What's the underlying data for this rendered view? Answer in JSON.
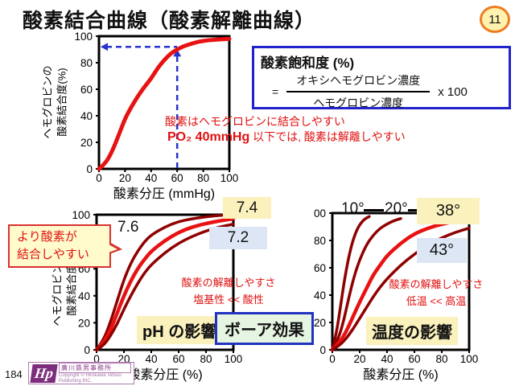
{
  "slide": {
    "title": "酸素結合曲線（酸素解離曲線）",
    "badge_number": "11"
  },
  "formula_box": {
    "title": "酸素飽和度 (%)",
    "equals_sign": "=",
    "numerator": "オキシヘモグロビン濃度",
    "denominator": "ヘモグロビン濃度",
    "multiplier": "x 100"
  },
  "main_panel": {
    "note_line1": "酸素はヘモグロビンに結合しやすい",
    "note_line2_strong": "PO₂ 40mmHg",
    "note_line2_rest": " 以下では, 酸素は解離しやすい",
    "ylabel_line1": "ヘモグロビンの",
    "ylabel_line2": "酸素結合度(%)"
  },
  "ph_panel": {
    "curve_label_76": "7.6",
    "badge_74": "7.4",
    "badge_72": "7.2",
    "callout_line1": "より酸素が",
    "callout_line2": "結合しやすい",
    "note_line1": "酸素の解離しやすさ",
    "note_line2": "塩基性 << 酸性",
    "highlight": "pH の影響",
    "bohr_box": "ボーア効果",
    "ylabel_line1": "ヘモグロビンの",
    "ylabel_line2": "酸素結合度"
  },
  "temp_panel": {
    "label_10": "10°",
    "label_20": "20°",
    "badge_38": "38°",
    "badge_43": "43°",
    "note_line1": "酸素の解離しやすさ",
    "note_line2": "低温 << 高温",
    "highlight": "温度の影響"
  },
  "footer": {
    "page_number": "184",
    "logo_hp": "Hp",
    "logo_office": "廣川鉄男事務所",
    "logo_copyright": "Copyright © Hirokawa Tetsuo Publishing INC."
  },
  "colors": {
    "bright_red": "#e81212",
    "dark_red": "#8f0000",
    "guide_blue": "#2633cc",
    "note_red": "#e01010",
    "highlight_yellow": "#faf1bc",
    "badge_blue": "#dce6f5",
    "callout_yellow": "#fffbcc",
    "bohr_green": "#e6f4e2"
  },
  "chart_data": [
    {
      "id": "main",
      "type": "line",
      "title": "酸素結合曲線",
      "xlabel": "酸素分圧 (mmHg)",
      "ylabel": "ヘモグロビンの酸素結合度(%)",
      "xlim": [
        0,
        100
      ],
      "ylim": [
        0,
        100
      ],
      "xticks": [
        0,
        20,
        40,
        60,
        80,
        100
      ],
      "yticks": [
        0,
        20,
        40,
        60,
        80,
        100
      ],
      "grid": false,
      "series": [
        {
          "name": "oxygen-binding-curve",
          "color": "#e81212",
          "width": 5,
          "points": [
            [
              0,
              0
            ],
            [
              5,
              4
            ],
            [
              10,
              13
            ],
            [
              15,
              25
            ],
            [
              20,
              38
            ],
            [
              25,
              47
            ],
            [
              30,
              55
            ],
            [
              35,
              62
            ],
            [
              40,
              68
            ],
            [
              45,
              76
            ],
            [
              50,
              82
            ],
            [
              55,
              87
            ],
            [
              60,
              90
            ],
            [
              65,
              92.5
            ],
            [
              70,
              94
            ],
            [
              75,
              95.5
            ],
            [
              80,
              96.5
            ],
            [
              90,
              97.5
            ],
            [
              100,
              98
            ]
          ]
        }
      ],
      "guides": {
        "x": 60,
        "y": 92,
        "color": "#2633cc"
      }
    },
    {
      "id": "ph",
      "type": "line",
      "title": "pH の影響",
      "xlabel": "酸素分圧 (%)",
      "ylabel": "ヘモグロビンの酸素結合度",
      "xlim": [
        0,
        100
      ],
      "ylim": [
        0,
        100
      ],
      "xticks": [
        0,
        20,
        40,
        60,
        80,
        100
      ],
      "yticks": [
        0,
        20,
        40,
        60,
        80,
        100
      ],
      "grid": false,
      "series": [
        {
          "name": "pH-7.6",
          "color": "#8f0000",
          "width": 3.5,
          "points": [
            [
              0,
              0
            ],
            [
              5,
              7
            ],
            [
              10,
              20
            ],
            [
              15,
              36
            ],
            [
              20,
              52
            ],
            [
              25,
              64
            ],
            [
              30,
              73
            ],
            [
              35,
              80
            ],
            [
              40,
              85
            ],
            [
              50,
              91
            ],
            [
              60,
              95
            ],
            [
              70,
              97
            ],
            [
              80,
              98.5
            ],
            [
              90,
              99.5
            ],
            [
              100,
              100
            ]
          ]
        },
        {
          "name": "pH-7.4",
          "color": "#e81212",
          "width": 4.5,
          "points": [
            [
              0,
              0
            ],
            [
              5,
              5
            ],
            [
              10,
              14
            ],
            [
              15,
              27
            ],
            [
              20,
              40
            ],
            [
              25,
              51
            ],
            [
              30,
              60
            ],
            [
              35,
              67
            ],
            [
              40,
              73
            ],
            [
              50,
              81
            ],
            [
              60,
              87
            ],
            [
              70,
              91
            ],
            [
              80,
              93.5
            ],
            [
              90,
              95.5
            ],
            [
              100,
              97
            ]
          ]
        },
        {
          "name": "pH-7.2",
          "color": "#8f0000",
          "width": 3.5,
          "points": [
            [
              0,
              0
            ],
            [
              5,
              3
            ],
            [
              10,
              10
            ],
            [
              15,
              19
            ],
            [
              20,
              30
            ],
            [
              25,
              40
            ],
            [
              30,
              49
            ],
            [
              35,
              57
            ],
            [
              40,
              63
            ],
            [
              50,
              72
            ],
            [
              60,
              79
            ],
            [
              70,
              84
            ],
            [
              80,
              88
            ],
            [
              90,
              91
            ],
            [
              100,
              93
            ]
          ]
        }
      ]
    },
    {
      "id": "temp",
      "type": "line",
      "title": "温度の影響",
      "xlabel": "酸素分圧 (%)",
      "xlim": [
        0,
        100
      ],
      "ylim": [
        0,
        100
      ],
      "xticks": [
        0,
        20,
        40,
        60,
        80,
        100
      ],
      "yticks": [
        0,
        20,
        40,
        60,
        80,
        100
      ],
      "grid": false,
      "series": [
        {
          "name": "10deg",
          "color": "#8f0000",
          "width": 3.5,
          "points": [
            [
              0,
              0
            ],
            [
              3,
              12
            ],
            [
              6,
              32
            ],
            [
              9,
              52
            ],
            [
              12,
              68
            ],
            [
              15,
              80
            ],
            [
              18,
              88
            ],
            [
              21,
              93
            ],
            [
              24,
              96
            ],
            [
              27,
              97.5
            ]
          ]
        },
        {
          "name": "20deg",
          "color": "#8f0000",
          "width": 3.5,
          "points": [
            [
              0,
              0
            ],
            [
              4,
              7
            ],
            [
              8,
              20
            ],
            [
              12,
              38
            ],
            [
              16,
              54
            ],
            [
              20,
              66
            ],
            [
              25,
              77
            ],
            [
              30,
              84
            ],
            [
              35,
              89
            ],
            [
              40,
              92
            ],
            [
              45,
              94.5
            ],
            [
              50,
              96
            ]
          ]
        },
        {
          "name": "38deg",
          "color": "#e81212",
          "width": 4.5,
          "points": [
            [
              0,
              0
            ],
            [
              5,
              5
            ],
            [
              10,
              13
            ],
            [
              15,
              24
            ],
            [
              20,
              35
            ],
            [
              25,
              45
            ],
            [
              30,
              55
            ],
            [
              35,
              62
            ],
            [
              40,
              69
            ],
            [
              50,
              78
            ],
            [
              60,
              85
            ],
            [
              70,
              89
            ],
            [
              80,
              92
            ],
            [
              90,
              94
            ],
            [
              100,
              96
            ]
          ]
        },
        {
          "name": "43deg",
          "color": "#8f0000",
          "width": 3.5,
          "points": [
            [
              0,
              0
            ],
            [
              5,
              3
            ],
            [
              10,
              8
            ],
            [
              15,
              15
            ],
            [
              20,
              23
            ],
            [
              25,
              31
            ],
            [
              30,
              39
            ],
            [
              35,
              46
            ],
            [
              40,
              52
            ],
            [
              50,
              62
            ],
            [
              60,
              70
            ],
            [
              70,
              77
            ],
            [
              80,
              82
            ],
            [
              90,
              86
            ],
            [
              100,
              89
            ]
          ]
        }
      ]
    }
  ]
}
